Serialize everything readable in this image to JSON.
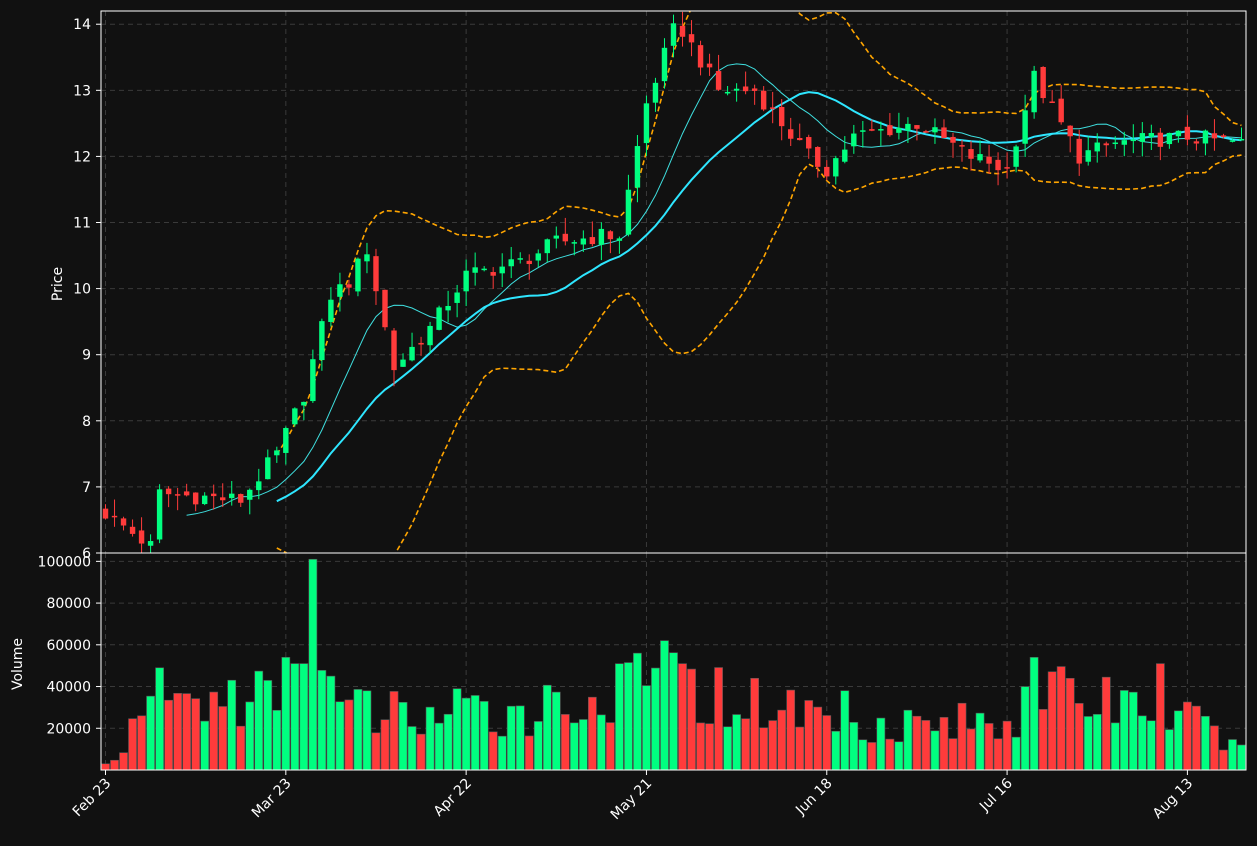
{
  "colors": {
    "background": "#111111",
    "up": "#00ff80",
    "down": "#ff3b3b",
    "sma_short": "#3fe0e0",
    "sma_long": "#2ee6ff",
    "bollinger": "#ffa500",
    "grid": "#3a3a3a",
    "axis": "#ffffff"
  },
  "chart_data": {
    "type": "candlestick",
    "price_panel": {
      "ylabel": "Price",
      "ylim": [
        6,
        14.2
      ],
      "yticks": [
        6,
        7,
        8,
        9,
        10,
        11,
        12,
        13,
        14
      ],
      "grid": true
    },
    "volume_panel": {
      "ylabel": "Volume",
      "ylim": [
        0,
        104000
      ],
      "yticks": [
        20000,
        40000,
        60000,
        80000,
        100000
      ],
      "grid": true
    },
    "x_ticks": [
      "Feb 23",
      "Mar 23",
      "Apr 22",
      "May 21",
      "Jun 18",
      "Jul 16",
      "Aug 13"
    ],
    "x_tick_index": [
      0,
      20,
      40,
      60,
      80,
      100,
      120
    ],
    "n_bars": 127,
    "key_closes": [
      [
        0,
        6.6
      ],
      [
        5,
        6.1
      ],
      [
        6,
        6.9
      ],
      [
        15,
        6.8
      ],
      [
        19,
        7.5
      ],
      [
        22,
        8.4
      ],
      [
        25,
        9.9
      ],
      [
        27,
        10.1
      ],
      [
        29,
        10.6
      ],
      [
        32,
        8.8
      ],
      [
        36,
        9.4
      ],
      [
        40,
        10.2
      ],
      [
        46,
        10.4
      ],
      [
        50,
        10.7
      ],
      [
        55,
        10.8
      ],
      [
        57,
        10.8
      ],
      [
        60,
        12.8
      ],
      [
        63,
        13.9
      ],
      [
        64,
        13.9
      ],
      [
        68,
        13.0
      ],
      [
        72,
        13.0
      ],
      [
        75,
        12.5
      ],
      [
        78,
        12.0
      ],
      [
        80,
        11.8
      ],
      [
        83,
        12.3
      ],
      [
        90,
        12.5
      ],
      [
        96,
        12.0
      ],
      [
        100,
        11.8
      ],
      [
        103,
        13.2
      ],
      [
        108,
        12.0
      ],
      [
        112,
        12.2
      ],
      [
        120,
        12.3
      ],
      [
        126,
        12.2
      ]
    ],
    "volume_key": [
      [
        0,
        3000
      ],
      [
        6,
        49000
      ],
      [
        20,
        54000
      ],
      [
        21,
        51000
      ],
      [
        22,
        51000
      ],
      [
        23,
        101000
      ],
      [
        25,
        45000
      ],
      [
        39,
        39000
      ],
      [
        59,
        56000
      ],
      [
        62,
        62000
      ],
      [
        82,
        38000
      ],
      [
        95,
        32000
      ],
      [
        102,
        40000
      ],
      [
        103,
        54000
      ],
      [
        117,
        51000
      ],
      [
        126,
        12000
      ]
    ],
    "series": [
      {
        "type": "candlestick"
      },
      {
        "type": "line",
        "window": 10
      },
      {
        "type": "line",
        "window": 20
      },
      {
        "type": "band",
        "window": 20
      }
    ]
  }
}
